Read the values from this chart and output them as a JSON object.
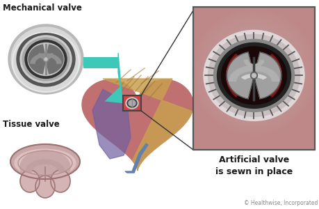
{
  "bg_color": "#ffffff",
  "title_mechanical": "Mechanical valve",
  "title_tissue": "Tissue valve",
  "title_artificial": "Artificial valve\nis sewn in place",
  "copyright": "© Healthwise, Incorporated",
  "arrow_color": "#3ec8b8",
  "box_line_color": "#333333",
  "panel_bg": "#c08888",
  "panel_border": "#555555"
}
